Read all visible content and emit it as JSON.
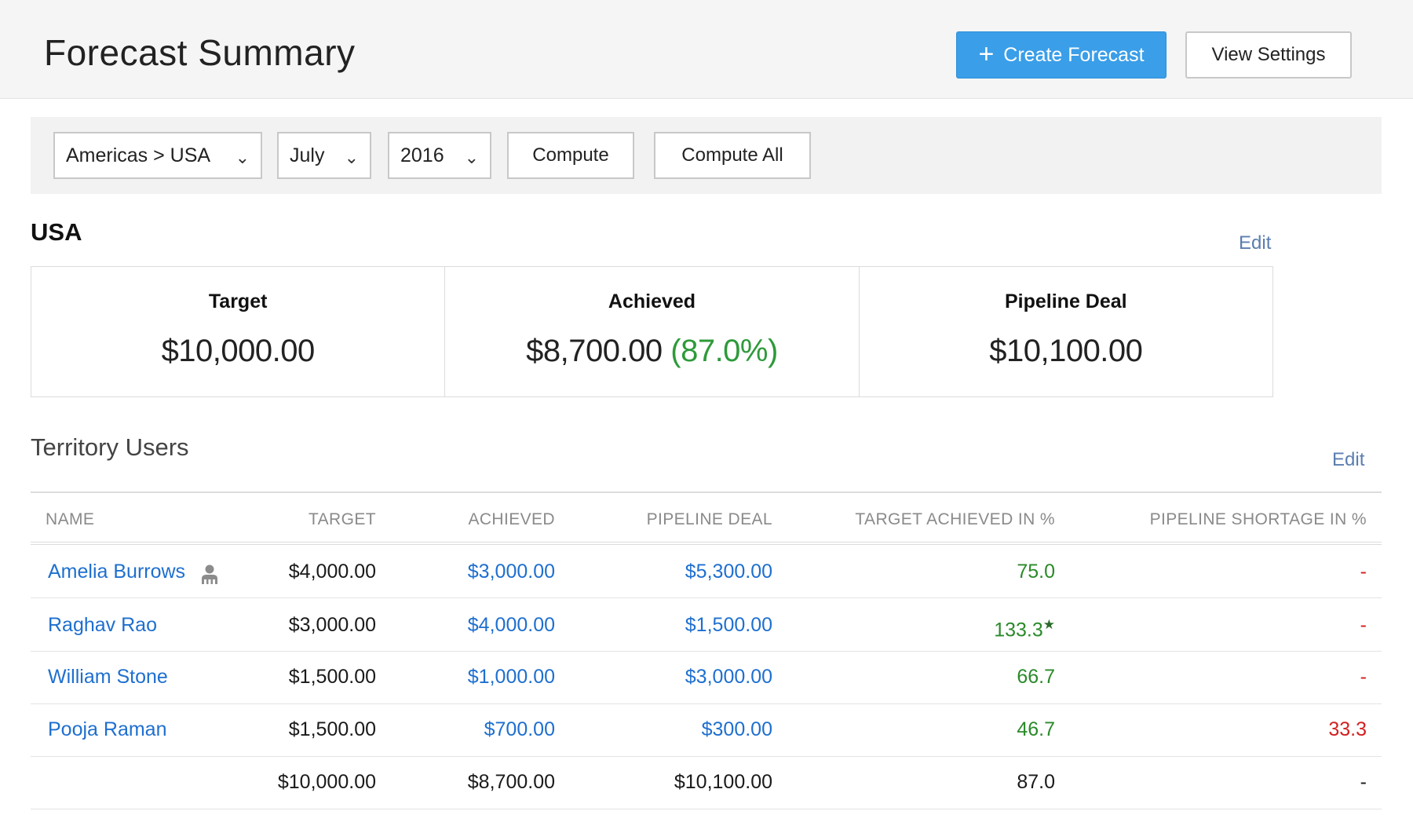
{
  "header": {
    "title": "Forecast  Summary",
    "create_button": "Create Forecast",
    "view_settings_button": "View Settings"
  },
  "filters": {
    "territory": "Americas > USA",
    "month": "July",
    "year": "2016",
    "compute_button": "Compute",
    "compute_all_button": "Compute All"
  },
  "summary": {
    "title": "USA",
    "edit_label": "Edit",
    "cards": [
      {
        "label": "Target",
        "value": "$10,000.00"
      },
      {
        "label": "Achieved",
        "value": "$8,700.00",
        "percent": "(87.0%)"
      },
      {
        "label": "Pipeline Deal",
        "value": "$10,100.00"
      }
    ]
  },
  "territory_users": {
    "title": "Territory Users",
    "edit_label": "Edit",
    "columns": [
      "NAME",
      "TARGET",
      "ACHIEVED",
      "PIPELINE DEAL",
      "TARGET ACHIEVED IN %",
      "PIPELINE SHORTAGE IN %"
    ],
    "rows": [
      {
        "name": "Amelia Burrows",
        "manager_icon": "user-group-icon",
        "target": "$4,000.00",
        "achieved": "$3,000.00",
        "pipeline": "$5,300.00",
        "achieved_pct": "75.0",
        "shortage_pct": "-"
      },
      {
        "name": "Raghav Rao",
        "target": "$3,000.00",
        "achieved": "$4,000.00",
        "pipeline": "$1,500.00",
        "achieved_pct": "133.3",
        "star": "★",
        "shortage_pct": "-"
      },
      {
        "name": "William Stone",
        "target": "$1,500.00",
        "achieved": "$1,000.00",
        "pipeline": "$3,000.00",
        "achieved_pct": "66.7",
        "shortage_pct": "-"
      },
      {
        "name": "Pooja Raman",
        "target": "$1,500.00",
        "achieved": "$700.00",
        "pipeline": "$300.00",
        "achieved_pct": "46.7",
        "shortage_pct": "33.3"
      }
    ],
    "totals": {
      "target": "$10,000.00",
      "achieved": "$8,700.00",
      "pipeline": "$10,100.00",
      "achieved_pct": "87.0",
      "shortage_pct": "-"
    }
  },
  "colors": {
    "primary_button": "#3a9ee8",
    "link": "#1e6fcf",
    "positive": "#2a8a2a",
    "negative": "#d32020"
  }
}
